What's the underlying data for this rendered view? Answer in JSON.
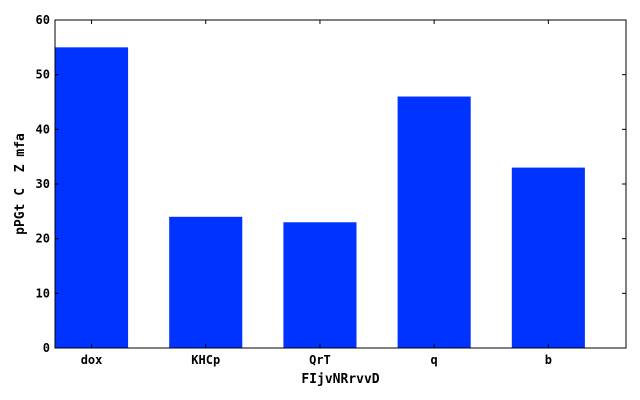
{
  "chart_data": {
    "type": "bar",
    "title": "",
    "xlabel": "FIjvNRrvvD",
    "ylabel": "pPGt C  Z mfa",
    "categories": [
      "dox",
      "KHCp",
      "QrT",
      "q",
      "b"
    ],
    "values": [
      55,
      24,
      23,
      46,
      33
    ],
    "ylim": [
      0,
      60
    ],
    "yticks": [
      0,
      10,
      20,
      30,
      40,
      50,
      60
    ],
    "grid": false,
    "bar_color": "#0033ff",
    "axis_color": "#000000"
  }
}
